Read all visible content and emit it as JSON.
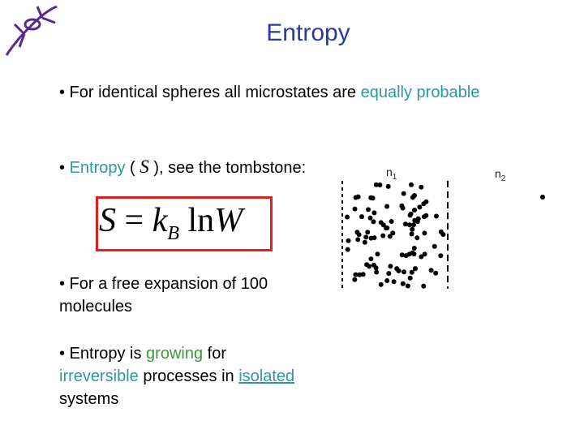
{
  "header": {
    "title": "Entropy"
  },
  "bullets": [
    {
      "parts": [
        "• For identical spheres all microstates are ",
        "equally probable"
      ]
    },
    {
      "parts": [
        "• ",
        "Entropy",
        " ( ",
        "S",
        " ), see the tombstone:"
      ]
    },
    {
      "parts": [
        "• For a free expansion of 100 molecules"
      ]
    },
    {
      "parts": [
        "• Entropy is ",
        "growing",
        " for ",
        "irreversible",
        " processes in ",
        "isolated",
        " systems"
      ]
    }
  ],
  "formula": {
    "parts": [
      "S",
      "=",
      "k",
      "B",
      "ln",
      "W"
    ]
  },
  "figure": {
    "labels": [
      {
        "text": "n",
        "sub": "1"
      },
      {
        "text": "n",
        "sub": "2"
      }
    ]
  }
}
